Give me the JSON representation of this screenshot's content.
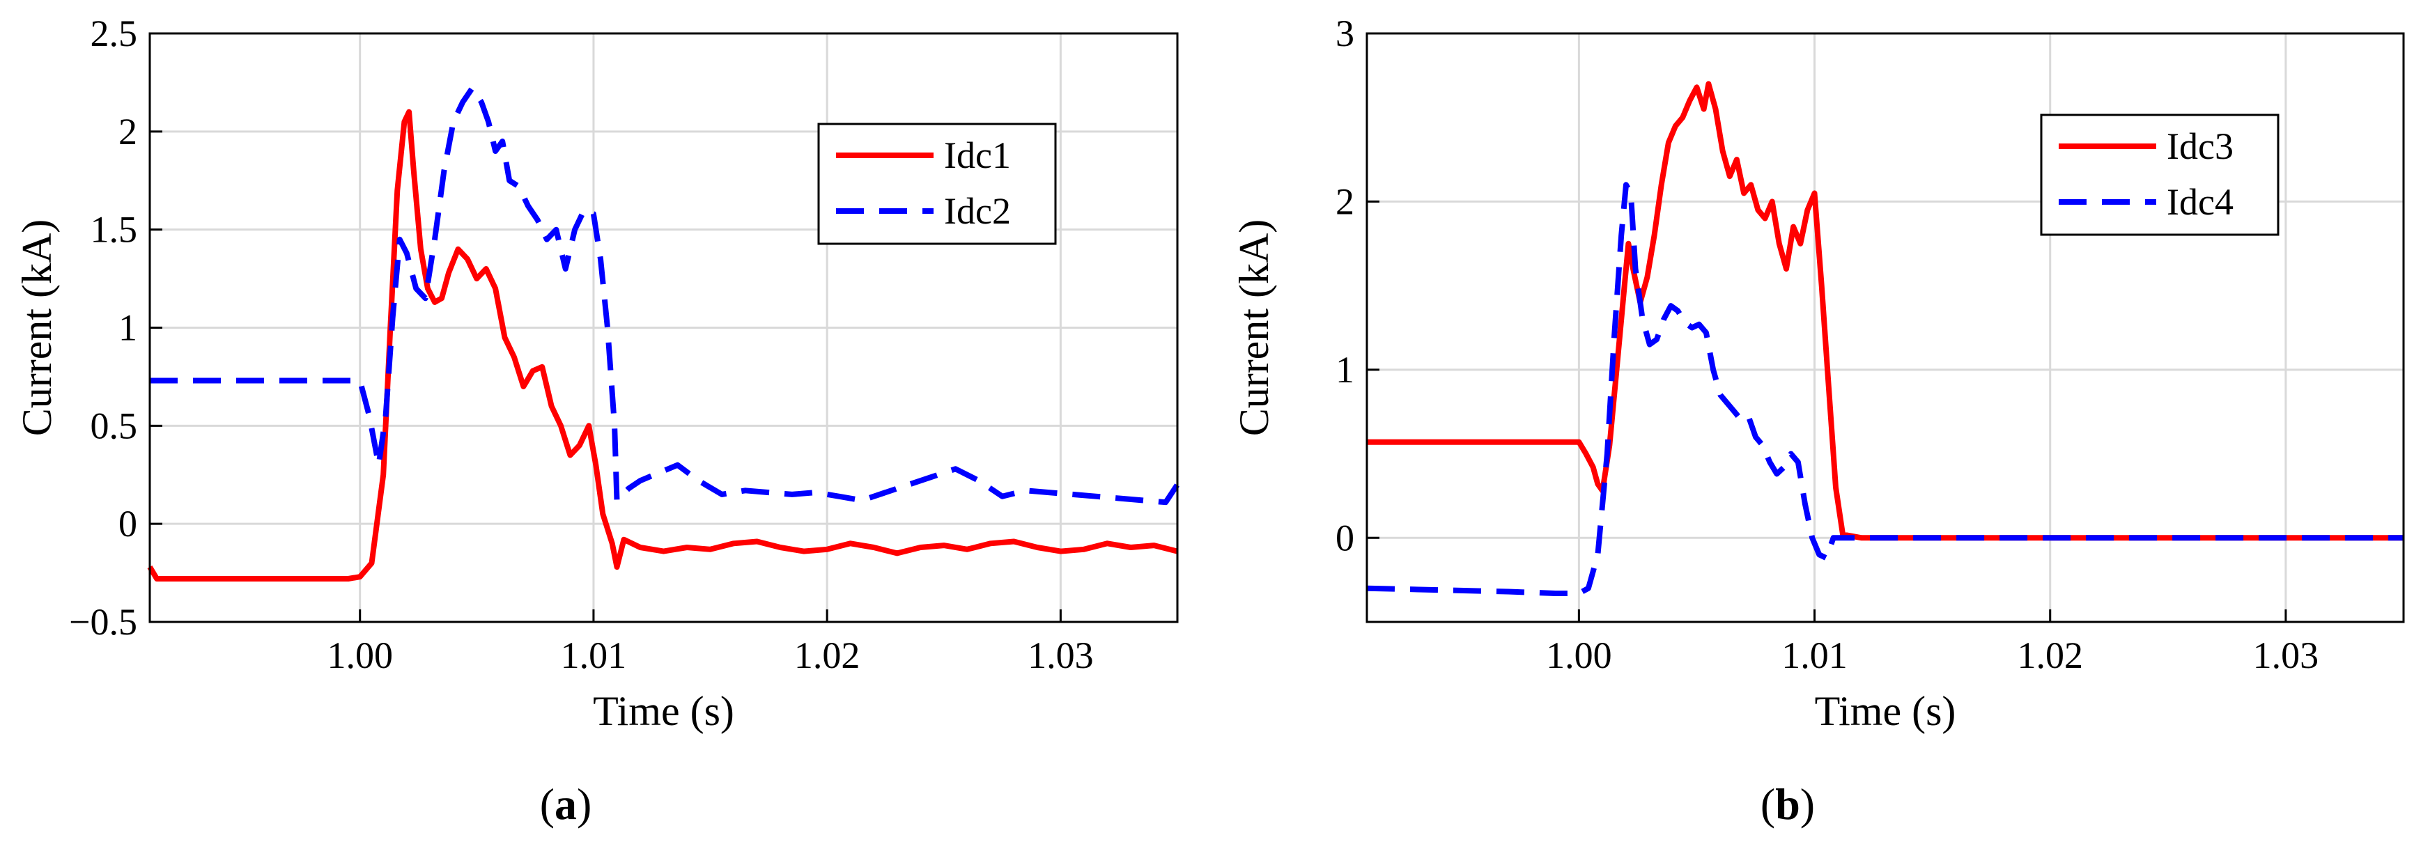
{
  "figure": {
    "panels": [
      {
        "caption": {
          "open": "(",
          "letter": "a",
          "close": ")"
        }
      },
      {
        "caption": {
          "open": "(",
          "letter": "b",
          "close": ")"
        }
      }
    ]
  },
  "colors": {
    "red": "#ff0000",
    "blue": "#0000ff",
    "grid": "#d9d9d9"
  },
  "chart_data": [
    {
      "type": "line",
      "title": "",
      "xlabel": "Time (s)",
      "ylabel": "Current (kA)",
      "xlim": [
        0.991,
        1.035
      ],
      "ylim": [
        -0.5,
        2.5
      ],
      "xticks": [
        1.0,
        1.01,
        1.02,
        1.03
      ],
      "xtick_labels": [
        "1.00",
        "1.01",
        "1.02",
        "1.03"
      ],
      "yticks": [
        -0.5,
        0,
        0.5,
        1,
        1.5,
        2,
        2.5
      ],
      "ytick_labels": [
        "−0.5",
        "0",
        "0.5",
        "1",
        "1.5",
        "2",
        "2.5"
      ],
      "grid": true,
      "legend_position": "top-right",
      "series": [
        {
          "name": "Idc1",
          "color": "#ff0000",
          "style": "solid",
          "x": [
            0.991,
            0.9913,
            0.992,
            0.994,
            0.996,
            0.998,
            0.9995,
            1.0,
            1.0005,
            1.001,
            1.0013,
            1.0016,
            1.0019,
            1.0021,
            1.0023,
            1.0026,
            1.0029,
            1.0032,
            1.0035,
            1.0038,
            1.0042,
            1.0046,
            1.005,
            1.0054,
            1.0058,
            1.0062,
            1.0066,
            1.007,
            1.0074,
            1.0078,
            1.0082,
            1.0086,
            1.009,
            1.0094,
            1.0098,
            1.0101,
            1.0104,
            1.0108,
            1.011,
            1.0113,
            1.012,
            1.013,
            1.014,
            1.015,
            1.016,
            1.017,
            1.018,
            1.019,
            1.02,
            1.021,
            1.022,
            1.023,
            1.024,
            1.025,
            1.026,
            1.027,
            1.028,
            1.029,
            1.03,
            1.031,
            1.032,
            1.033,
            1.034,
            1.035
          ],
          "y": [
            -0.22,
            -0.28,
            -0.28,
            -0.28,
            -0.28,
            -0.28,
            -0.28,
            -0.27,
            -0.2,
            0.25,
            1.0,
            1.7,
            2.05,
            2.1,
            1.8,
            1.4,
            1.2,
            1.13,
            1.15,
            1.28,
            1.4,
            1.35,
            1.25,
            1.3,
            1.2,
            0.95,
            0.85,
            0.7,
            0.78,
            0.8,
            0.6,
            0.5,
            0.35,
            0.4,
            0.5,
            0.3,
            0.05,
            -0.1,
            -0.22,
            -0.08,
            -0.12,
            -0.14,
            -0.12,
            -0.13,
            -0.1,
            -0.09,
            -0.12,
            -0.14,
            -0.13,
            -0.1,
            -0.12,
            -0.15,
            -0.12,
            -0.11,
            -0.13,
            -0.1,
            -0.09,
            -0.12,
            -0.14,
            -0.13,
            -0.1,
            -0.12,
            -0.11,
            -0.14
          ]
        },
        {
          "name": "Idc2",
          "color": "#0000ff",
          "style": "dashed",
          "x": [
            0.991,
            0.994,
            0.997,
            1.0,
            1.0004,
            1.0008,
            1.0011,
            1.0014,
            1.0017,
            1.002,
            1.0024,
            1.0028,
            1.0032,
            1.0036,
            1.004,
            1.0044,
            1.0048,
            1.0052,
            1.0055,
            1.0058,
            1.0061,
            1.0064,
            1.0068,
            1.0072,
            1.0076,
            1.008,
            1.0084,
            1.0088,
            1.0092,
            1.0096,
            1.01,
            1.0103,
            1.0106,
            1.0109,
            1.011,
            1.0115,
            1.012,
            1.0128,
            1.0136,
            1.0145,
            1.0155,
            1.0165,
            1.0175,
            1.0185,
            1.0195,
            1.0205,
            1.0215,
            1.0225,
            1.0235,
            1.0245,
            1.0255,
            1.0265,
            1.0275,
            1.0285,
            1.0295,
            1.0305,
            1.0315,
            1.0325,
            1.0335,
            1.0345,
            1.035
          ],
          "y": [
            0.73,
            0.73,
            0.73,
            0.73,
            0.55,
            0.3,
            0.55,
            1.05,
            1.45,
            1.38,
            1.2,
            1.15,
            1.45,
            1.8,
            2.05,
            2.15,
            2.22,
            2.15,
            2.05,
            1.9,
            1.95,
            1.75,
            1.72,
            1.62,
            1.55,
            1.45,
            1.5,
            1.3,
            1.5,
            1.6,
            1.58,
            1.35,
            1.0,
            0.5,
            0.12,
            0.18,
            0.22,
            0.26,
            0.3,
            0.22,
            0.15,
            0.17,
            0.16,
            0.15,
            0.16,
            0.14,
            0.12,
            0.16,
            0.2,
            0.24,
            0.28,
            0.22,
            0.14,
            0.17,
            0.16,
            0.15,
            0.14,
            0.13,
            0.12,
            0.11,
            0.2
          ]
        }
      ]
    },
    {
      "type": "line",
      "title": "",
      "xlabel": "Time (s)",
      "ylabel": "Current (kA)",
      "xlim": [
        0.991,
        1.035
      ],
      "ylim": [
        -0.5,
        3
      ],
      "xticks": [
        1.0,
        1.01,
        1.02,
        1.03
      ],
      "xtick_labels": [
        "1.00",
        "1.01",
        "1.02",
        "1.03"
      ],
      "yticks": [
        0,
        1,
        2,
        3
      ],
      "ytick_labels": [
        "0",
        "1",
        "2",
        "3"
      ],
      "grid": true,
      "legend_position": "top-right",
      "series": [
        {
          "name": "Idc3",
          "color": "#ff0000",
          "style": "solid",
          "x": [
            0.991,
            0.994,
            0.997,
            1.0,
            1.0003,
            1.0006,
            1.0008,
            1.001,
            1.0013,
            1.0016,
            1.0019,
            1.0021,
            1.0023,
            1.0026,
            1.0029,
            1.0032,
            1.0035,
            1.0038,
            1.0041,
            1.0044,
            1.0047,
            1.005,
            1.0053,
            1.0055,
            1.0058,
            1.0061,
            1.0064,
            1.0067,
            1.007,
            1.0073,
            1.0076,
            1.0079,
            1.0082,
            1.0085,
            1.0088,
            1.0091,
            1.0094,
            1.0097,
            1.01,
            1.0103,
            1.0106,
            1.0109,
            1.0112,
            1.012,
            1.015,
            1.02,
            1.025,
            1.03,
            1.035
          ],
          "y": [
            0.57,
            0.57,
            0.57,
            0.57,
            0.5,
            0.42,
            0.32,
            0.28,
            0.55,
            1.0,
            1.45,
            1.75,
            1.6,
            1.4,
            1.55,
            1.8,
            2.1,
            2.35,
            2.45,
            2.5,
            2.6,
            2.68,
            2.55,
            2.7,
            2.55,
            2.3,
            2.15,
            2.25,
            2.05,
            2.1,
            1.95,
            1.9,
            2.0,
            1.75,
            1.6,
            1.85,
            1.75,
            1.95,
            2.05,
            1.5,
            0.9,
            0.3,
            0.02,
            0.0,
            0.0,
            0.0,
            0.0,
            0.0,
            0.0
          ]
        },
        {
          "name": "Idc4",
          "color": "#0000ff",
          "style": "dashed",
          "x": [
            0.991,
            0.994,
            0.997,
            0.999,
            1.0,
            1.0004,
            1.0008,
            1.0012,
            1.0015,
            1.0018,
            1.002,
            1.0022,
            1.0024,
            1.0027,
            1.003,
            1.0033,
            1.0036,
            1.0039,
            1.0042,
            1.0045,
            1.0048,
            1.0051,
            1.0054,
            1.0057,
            1.006,
            1.0063,
            1.0066,
            1.0069,
            1.0072,
            1.0075,
            1.0078,
            1.0081,
            1.0084,
            1.0087,
            1.009,
            1.0093,
            1.0096,
            1.0099,
            1.0102,
            1.0105,
            1.0108,
            1.0111,
            1.0114,
            1.012,
            1.015,
            1.02,
            1.025,
            1.03,
            1.035
          ],
          "y": [
            -0.3,
            -0.31,
            -0.32,
            -0.33,
            -0.33,
            -0.3,
            -0.1,
            0.5,
            1.2,
            1.8,
            2.1,
            2.05,
            1.6,
            1.3,
            1.15,
            1.18,
            1.3,
            1.38,
            1.35,
            1.28,
            1.25,
            1.27,
            1.22,
            1.0,
            0.85,
            0.8,
            0.75,
            0.7,
            0.72,
            0.6,
            0.55,
            0.45,
            0.38,
            0.42,
            0.5,
            0.45,
            0.2,
            0.0,
            -0.1,
            -0.12,
            0.0,
            0.0,
            0.0,
            0.0,
            0.0,
            0.0,
            0.0,
            0.0,
            0.0
          ]
        }
      ]
    }
  ]
}
